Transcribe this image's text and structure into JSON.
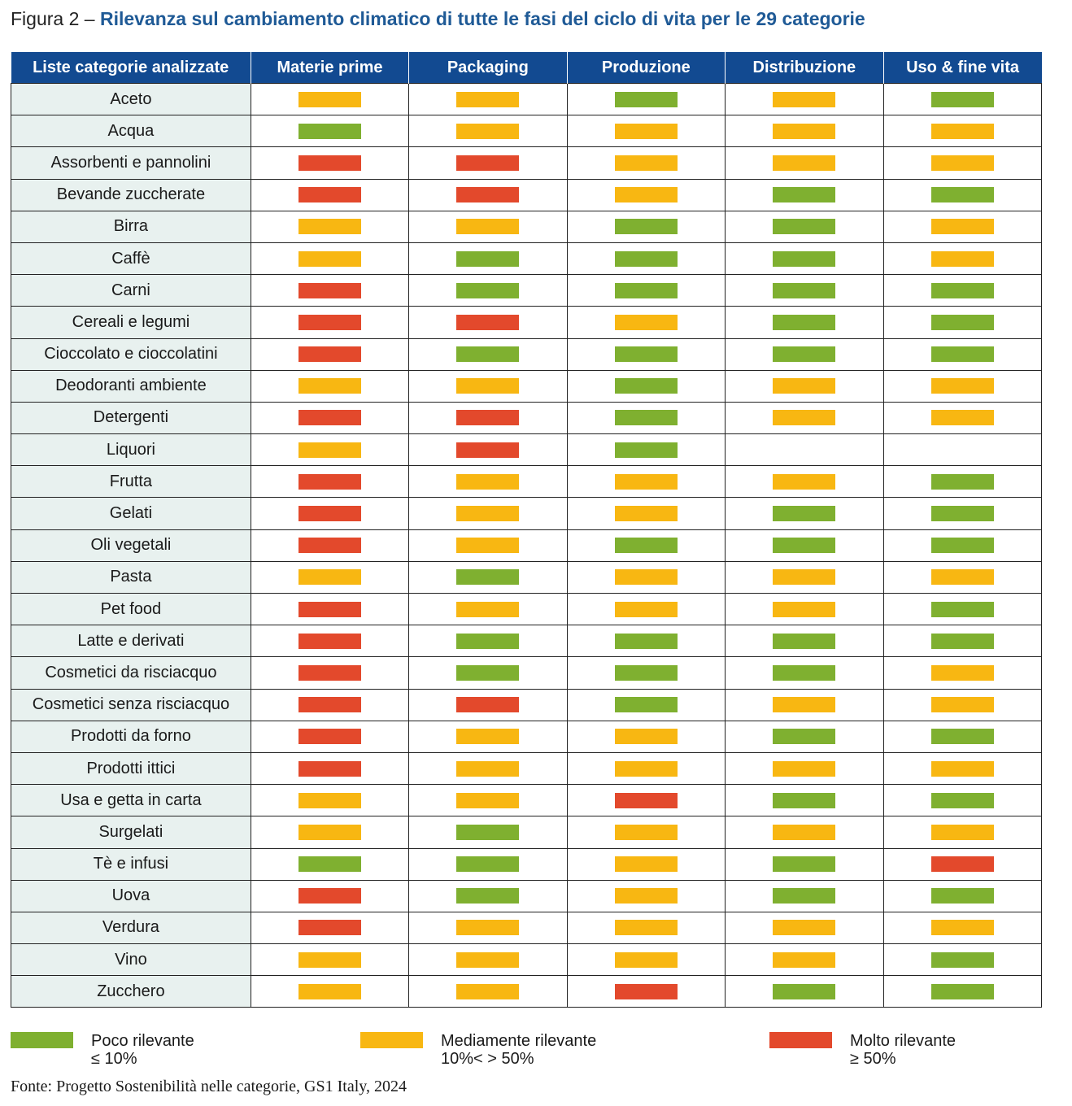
{
  "title": {
    "lead": "Figura 2 – ",
    "main": "Rilevanza sul cambiamento climatico di tutte le fasi del ciclo di vita per le 29 categorie"
  },
  "colors": {
    "G": "#7fb030",
    "Y": "#f8b712",
    "R": "#e3492c"
  },
  "chart_data": {
    "type": "heatmap",
    "title": "Rilevanza sul cambiamento climatico di tutte le fasi del ciclo di vita per le 29 categorie",
    "row_header": "Liste categorie analizzate",
    "columns": [
      "Materie prime",
      "Packaging",
      "Produzione",
      "Distribuzione",
      "Uso & fine vita"
    ],
    "levels": {
      "G": "Poco rilevante",
      "Y": "Mediamente rilevante",
      "R": "Molto rilevante"
    },
    "rows": [
      {
        "name": "Aceto",
        "values": [
          "Y",
          "Y",
          "G",
          "Y",
          "G"
        ]
      },
      {
        "name": "Acqua",
        "values": [
          "G",
          "Y",
          "Y",
          "Y",
          "Y"
        ]
      },
      {
        "name": "Assorbenti e pannolini",
        "values": [
          "R",
          "R",
          "Y",
          "Y",
          "Y"
        ]
      },
      {
        "name": "Bevande zuccherate",
        "values": [
          "R",
          "R",
          "Y",
          "G",
          "G"
        ]
      },
      {
        "name": "Birra",
        "values": [
          "Y",
          "Y",
          "G",
          "G",
          "Y"
        ]
      },
      {
        "name": "Caffè",
        "values": [
          "Y",
          "G",
          "G",
          "G",
          "Y"
        ]
      },
      {
        "name": "Carni",
        "values": [
          "R",
          "G",
          "G",
          "G",
          "G"
        ]
      },
      {
        "name": "Cereali e legumi",
        "values": [
          "R",
          "R",
          "Y",
          "G",
          "G"
        ]
      },
      {
        "name": "Cioccolato e cioccolatini",
        "values": [
          "R",
          "G",
          "G",
          "G",
          "G"
        ]
      },
      {
        "name": "Deodoranti ambiente",
        "values": [
          "Y",
          "Y",
          "G",
          "Y",
          "Y"
        ]
      },
      {
        "name": "Detergenti",
        "values": [
          "R",
          "R",
          "G",
          "Y",
          "Y"
        ]
      },
      {
        "name": "Liquori",
        "values": [
          "Y",
          "R",
          "G",
          "",
          ""
        ]
      },
      {
        "name": "Frutta",
        "values": [
          "R",
          "Y",
          "Y",
          "Y",
          "G"
        ]
      },
      {
        "name": "Gelati",
        "values": [
          "R",
          "Y",
          "Y",
          "G",
          "G"
        ]
      },
      {
        "name": "Oli vegetali",
        "values": [
          "R",
          "Y",
          "G",
          "G",
          "G"
        ]
      },
      {
        "name": "Pasta",
        "values": [
          "Y",
          "G",
          "Y",
          "Y",
          "Y"
        ]
      },
      {
        "name": "Pet food",
        "values": [
          "R",
          "Y",
          "Y",
          "Y",
          "G"
        ]
      },
      {
        "name": "Latte e derivati",
        "values": [
          "R",
          "G",
          "G",
          "G",
          "G"
        ]
      },
      {
        "name": "Cosmetici da risciacquo",
        "values": [
          "R",
          "G",
          "G",
          "G",
          "Y"
        ]
      },
      {
        "name": "Cosmetici senza risciacquo",
        "values": [
          "R",
          "R",
          "G",
          "Y",
          "Y"
        ]
      },
      {
        "name": "Prodotti da forno",
        "values": [
          "R",
          "Y",
          "Y",
          "G",
          "G"
        ]
      },
      {
        "name": "Prodotti ittici",
        "values": [
          "R",
          "Y",
          "Y",
          "Y",
          "Y"
        ]
      },
      {
        "name": "Usa e getta in carta",
        "values": [
          "Y",
          "Y",
          "R",
          "G",
          "G"
        ]
      },
      {
        "name": "Surgelati",
        "values": [
          "Y",
          "G",
          "Y",
          "Y",
          "Y"
        ]
      },
      {
        "name": "Tè e infusi",
        "values": [
          "G",
          "G",
          "Y",
          "G",
          "R"
        ]
      },
      {
        "name": "Uova",
        "values": [
          "R",
          "G",
          "Y",
          "G",
          "G"
        ]
      },
      {
        "name": "Verdura",
        "values": [
          "R",
          "Y",
          "Y",
          "Y",
          "Y"
        ]
      },
      {
        "name": "Vino",
        "values": [
          "Y",
          "Y",
          "Y",
          "Y",
          "G"
        ]
      },
      {
        "name": "Zucchero",
        "values": [
          "Y",
          "Y",
          "R",
          "G",
          "G"
        ]
      }
    ]
  },
  "legend": [
    {
      "key": "G",
      "label": "Poco rilevante",
      "range": "≤ 10%"
    },
    {
      "key": "Y",
      "label": "Mediamente rilevante",
      "range": "10%< > 50%"
    },
    {
      "key": "R",
      "label": "Molto rilevante",
      "range": "≥ 50%"
    }
  ],
  "source": "Fonte: Progetto Sostenibilità nelle categorie, GS1 Italy, 2024"
}
